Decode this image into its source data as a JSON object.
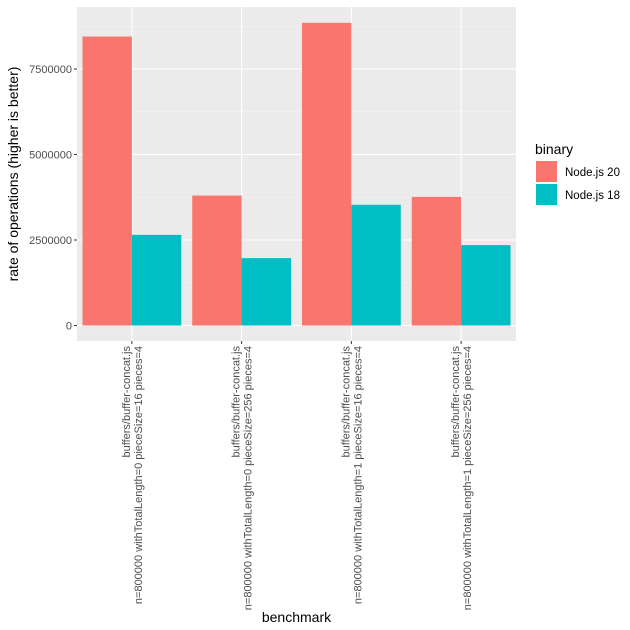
{
  "colors": {
    "panel_bg": "#EBEBEB",
    "grid_major": "#FFFFFF",
    "grid_minor": "#F5F5F5"
  },
  "chart_data": {
    "type": "bar",
    "barmode": "grouped",
    "xlabel": "benchmark",
    "ylabel": "rate of operations (higher is better)",
    "ylim": [
      0,
      9300000
    ],
    "yticks": [
      0,
      2500000,
      5000000,
      7500000
    ],
    "ytick_labels": [
      "0",
      "2500000",
      "5000000",
      "7500000"
    ],
    "categories": [
      [
        "buffers/buffer-concat.js",
        "n=800000 withTotalLength=0 pieceSize=16 pieces=4"
      ],
      [
        "buffers/buffer-concat.js",
        "n=800000 withTotalLength=0 pieceSize=256 pieces=4"
      ],
      [
        "buffers/buffer-concat.js",
        "n=800000 withTotalLength=1 pieceSize=16 pieces=4"
      ],
      [
        "buffers/buffer-concat.js",
        "n=800000 withTotalLength=1 pieceSize=256 pieces=4"
      ]
    ],
    "legend": {
      "title": "binary",
      "position": "right"
    },
    "series": [
      {
        "name": "Node.js 20",
        "color": "#F8766D",
        "values": [
          8450000,
          3800000,
          8850000,
          3760000
        ]
      },
      {
        "name": "Node.js 18",
        "color": "#00BFC4",
        "values": [
          2650000,
          1970000,
          3530000,
          2350000
        ]
      }
    ]
  }
}
